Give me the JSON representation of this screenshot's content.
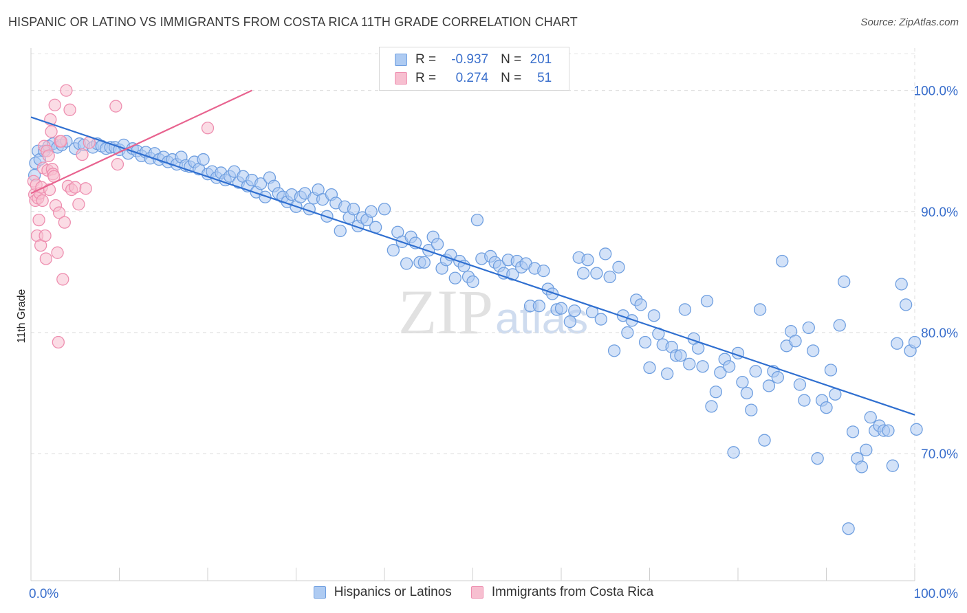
{
  "title": "HISPANIC OR LATINO VS IMMIGRANTS FROM COSTA RICA 11TH GRADE CORRELATION CHART",
  "source": "Source: ZipAtlas.com",
  "watermark": {
    "zip": "ZIP",
    "atlas": "atlas"
  },
  "legend": {
    "r_label": "R =",
    "n_label": "N =",
    "series1": {
      "r": "-0.937",
      "n": "201"
    },
    "series2": {
      "r": "0.274",
      "n": "51"
    }
  },
  "bottom_legend": {
    "series1": "Hispanics or Latinos",
    "series2": "Immigrants from Costa Rica"
  },
  "colors": {
    "blue_fill": "#aecbf2",
    "blue_stroke": "#6f9fe0",
    "blue_line": "#2f6fd0",
    "pink_fill": "#f7bfd0",
    "pink_stroke": "#ee8fb0",
    "pink_line": "#e8638f",
    "tick_text": "#3a6fcc"
  },
  "chart_data": {
    "type": "scatter",
    "title": "HISPANIC OR LATINO VS IMMIGRANTS FROM COSTA RICA 11TH GRADE CORRELATION CHART",
    "xlabel": "",
    "ylabel": "11th Grade",
    "xlim": [
      0,
      100
    ],
    "ylim": [
      59.5,
      103.5
    ],
    "x_tick_labels": [
      "0.0%",
      "100.0%"
    ],
    "y_ticks": [
      70,
      80,
      90,
      100
    ],
    "y_tick_labels": [
      "70.0%",
      "80.0%",
      "90.0%",
      "100.0%"
    ],
    "grid": true,
    "series": [
      {
        "name": "Hispanics or Latinos",
        "r": -0.937,
        "n": 201,
        "trend": {
          "x": [
            0,
            100
          ],
          "y": [
            97.8,
            73.2
          ]
        },
        "points": [
          [
            0.4,
            93
          ],
          [
            0.5,
            94
          ],
          [
            0.8,
            95
          ],
          [
            1,
            94.3
          ],
          [
            1.5,
            95
          ],
          [
            2,
            95.4
          ],
          [
            2.5,
            95.6
          ],
          [
            3,
            95.3
          ],
          [
            3.5,
            95.5
          ],
          [
            4,
            95.8
          ],
          [
            5,
            95.2
          ],
          [
            5.5,
            95.6
          ],
          [
            6,
            95.5
          ],
          [
            7,
            95.3
          ],
          [
            7.5,
            95.6
          ],
          [
            8,
            95.4
          ],
          [
            8.5,
            95.2
          ],
          [
            9,
            95.3
          ],
          [
            9.5,
            95.3
          ],
          [
            10,
            95.1
          ],
          [
            10.5,
            95.5
          ],
          [
            11,
            94.8
          ],
          [
            11.5,
            95.2
          ],
          [
            12,
            95
          ],
          [
            12.5,
            94.6
          ],
          [
            13,
            94.9
          ],
          [
            13.5,
            94.4
          ],
          [
            14,
            94.8
          ],
          [
            14.5,
            94.3
          ],
          [
            15,
            94.5
          ],
          [
            15.5,
            94.1
          ],
          [
            16,
            94.3
          ],
          [
            16.5,
            93.9
          ],
          [
            17,
            94.5
          ],
          [
            17.5,
            93.8
          ],
          [
            18,
            93.7
          ],
          [
            18.5,
            94.1
          ],
          [
            19,
            93.5
          ],
          [
            19.5,
            94.3
          ],
          [
            20,
            93.1
          ],
          [
            20.5,
            93.3
          ],
          [
            21,
            92.8
          ],
          [
            21.5,
            93.2
          ],
          [
            22,
            92.6
          ],
          [
            22.5,
            92.9
          ],
          [
            23,
            93.3
          ],
          [
            23.5,
            92.4
          ],
          [
            24,
            92.9
          ],
          [
            24.5,
            92.1
          ],
          [
            25,
            92.6
          ],
          [
            25.5,
            91.6
          ],
          [
            26,
            92.3
          ],
          [
            26.5,
            91.2
          ],
          [
            27,
            92.8
          ],
          [
            27.5,
            92.1
          ],
          [
            28,
            91.5
          ],
          [
            28.5,
            91.2
          ],
          [
            29,
            90.8
          ],
          [
            29.5,
            91.4
          ],
          [
            30,
            90.4
          ],
          [
            30.5,
            91.2
          ],
          [
            31,
            91.5
          ],
          [
            31.5,
            90.2
          ],
          [
            32,
            91.1
          ],
          [
            32.5,
            91.8
          ],
          [
            33,
            91
          ],
          [
            33.5,
            89.6
          ],
          [
            34,
            91.4
          ],
          [
            34.5,
            90.7
          ],
          [
            35,
            88.4
          ],
          [
            35.5,
            90.4
          ],
          [
            36,
            89.5
          ],
          [
            36.5,
            90.2
          ],
          [
            37,
            88.8
          ],
          [
            37.5,
            89.5
          ],
          [
            38,
            89.3
          ],
          [
            38.5,
            90
          ],
          [
            39,
            88.7
          ],
          [
            40,
            90.2
          ],
          [
            41,
            86.8
          ],
          [
            41.5,
            88.3
          ],
          [
            42,
            87.5
          ],
          [
            42.5,
            85.7
          ],
          [
            43,
            87.9
          ],
          [
            43.5,
            87.4
          ],
          [
            44,
            85.8
          ],
          [
            44.5,
            85.8
          ],
          [
            45,
            86.8
          ],
          [
            45.5,
            87.9
          ],
          [
            46,
            87.3
          ],
          [
            46.5,
            85.3
          ],
          [
            47,
            86
          ],
          [
            47.5,
            86.4
          ],
          [
            48,
            84.5
          ],
          [
            48.5,
            85.9
          ],
          [
            49,
            85.5
          ],
          [
            49.5,
            84.6
          ],
          [
            50,
            84.2
          ],
          [
            50.5,
            89.3
          ],
          [
            51,
            86.1
          ],
          [
            52,
            86.3
          ],
          [
            52.5,
            85.8
          ],
          [
            53,
            85.5
          ],
          [
            53.5,
            84.9
          ],
          [
            54,
            86
          ],
          [
            54.5,
            84.8
          ],
          [
            55,
            85.9
          ],
          [
            55.5,
            85.4
          ],
          [
            56,
            85.7
          ],
          [
            56.5,
            82.2
          ],
          [
            57,
            85.3
          ],
          [
            57.5,
            82.2
          ],
          [
            58,
            85.1
          ],
          [
            58.5,
            83.6
          ],
          [
            59,
            83.2
          ],
          [
            59.5,
            81.9
          ],
          [
            60,
            82
          ],
          [
            61,
            80.9
          ],
          [
            61.5,
            81.8
          ],
          [
            62,
            86.2
          ],
          [
            62.5,
            84.9
          ],
          [
            63,
            86
          ],
          [
            63.5,
            81.7
          ],
          [
            64,
            84.9
          ],
          [
            64.5,
            81.1
          ],
          [
            65,
            86.5
          ],
          [
            65.5,
            84.6
          ],
          [
            66,
            78.5
          ],
          [
            66.5,
            85.4
          ],
          [
            67,
            81.4
          ],
          [
            67.5,
            80
          ],
          [
            68,
            81
          ],
          [
            68.5,
            82.7
          ],
          [
            69,
            82.3
          ],
          [
            69.5,
            79.2
          ],
          [
            70,
            77.1
          ],
          [
            70.5,
            81.4
          ],
          [
            71,
            79.9
          ],
          [
            71.5,
            79
          ],
          [
            72,
            76.6
          ],
          [
            72.5,
            78.8
          ],
          [
            73,
            78.1
          ],
          [
            73.5,
            78.1
          ],
          [
            74,
            81.9
          ],
          [
            74.5,
            77.4
          ],
          [
            75,
            79.5
          ],
          [
            75.5,
            78.7
          ],
          [
            76,
            77.2
          ],
          [
            76.5,
            82.6
          ],
          [
            77,
            73.9
          ],
          [
            77.5,
            75.1
          ],
          [
            78,
            76.7
          ],
          [
            78.5,
            77.8
          ],
          [
            79,
            77.2
          ],
          [
            79.5,
            70.1
          ],
          [
            80,
            78.3
          ],
          [
            80.5,
            75.9
          ],
          [
            81,
            75
          ],
          [
            81.5,
            73.6
          ],
          [
            82,
            76.8
          ],
          [
            82.5,
            81.9
          ],
          [
            83,
            71.1
          ],
          [
            83.5,
            75.6
          ],
          [
            84,
            76.8
          ],
          [
            84.5,
            76.3
          ],
          [
            85,
            85.9
          ],
          [
            85.5,
            78.9
          ],
          [
            86,
            80.1
          ],
          [
            86.5,
            79.3
          ],
          [
            87,
            75.7
          ],
          [
            87.5,
            74.4
          ],
          [
            88,
            80.4
          ],
          [
            88.5,
            78.5
          ],
          [
            89,
            69.6
          ],
          [
            89.5,
            74.4
          ],
          [
            90,
            73.8
          ],
          [
            90.5,
            76.9
          ],
          [
            91,
            74.9
          ],
          [
            91.5,
            80.6
          ],
          [
            92,
            84.2
          ],
          [
            92.5,
            63.8
          ],
          [
            93,
            71.8
          ],
          [
            93.5,
            69.6
          ],
          [
            94,
            68.9
          ],
          [
            94.5,
            70.3
          ],
          [
            95,
            73
          ],
          [
            95.5,
            71.9
          ],
          [
            96,
            72.3
          ],
          [
            96.5,
            71.9
          ],
          [
            97,
            71.9
          ],
          [
            97.5,
            69
          ],
          [
            98,
            79.1
          ],
          [
            98.5,
            84
          ],
          [
            99,
            82.3
          ],
          [
            99.5,
            78.5
          ],
          [
            100,
            79.2
          ],
          [
            100.2,
            72
          ]
        ]
      },
      {
        "name": "Immigrants from Costa Rica",
        "r": 0.274,
        "n": 51,
        "trend": {
          "x": [
            0,
            25
          ],
          "y": [
            91.5,
            100
          ]
        },
        "points": [
          [
            0.3,
            92.5
          ],
          [
            0.4,
            91.4
          ],
          [
            0.5,
            90.9
          ],
          [
            0.6,
            92.2
          ],
          [
            0.7,
            88
          ],
          [
            0.8,
            91.1
          ],
          [
            0.9,
            89.3
          ],
          [
            1,
            91.5
          ],
          [
            1.1,
            87.2
          ],
          [
            1.2,
            92
          ],
          [
            1.3,
            90.9
          ],
          [
            1.4,
            93.6
          ],
          [
            1.5,
            95.4
          ],
          [
            1.6,
            88
          ],
          [
            1.7,
            86.1
          ],
          [
            1.8,
            95
          ],
          [
            1.9,
            93.4
          ],
          [
            2,
            94.6
          ],
          [
            2.1,
            91.8
          ],
          [
            2.2,
            97.6
          ],
          [
            2.3,
            96.6
          ],
          [
            2.4,
            93.5
          ],
          [
            2.5,
            93.1
          ],
          [
            2.6,
            92.9
          ],
          [
            2.7,
            98.8
          ],
          [
            2.8,
            90.5
          ],
          [
            3,
            86.6
          ],
          [
            3.1,
            79.2
          ],
          [
            3.2,
            89.9
          ],
          [
            3.3,
            95.8
          ],
          [
            3.4,
            95.8
          ],
          [
            3.6,
            84.4
          ],
          [
            3.8,
            89.1
          ],
          [
            4,
            100
          ],
          [
            4.2,
            92.1
          ],
          [
            4.4,
            98.4
          ],
          [
            4.6,
            91.8
          ],
          [
            5,
            92
          ],
          [
            5.4,
            90.6
          ],
          [
            5.8,
            94.7
          ],
          [
            6.2,
            91.9
          ],
          [
            6.6,
            95.7
          ],
          [
            9.6,
            98.7
          ],
          [
            9.8,
            93.9
          ],
          [
            20,
            96.9
          ]
        ]
      }
    ]
  }
}
